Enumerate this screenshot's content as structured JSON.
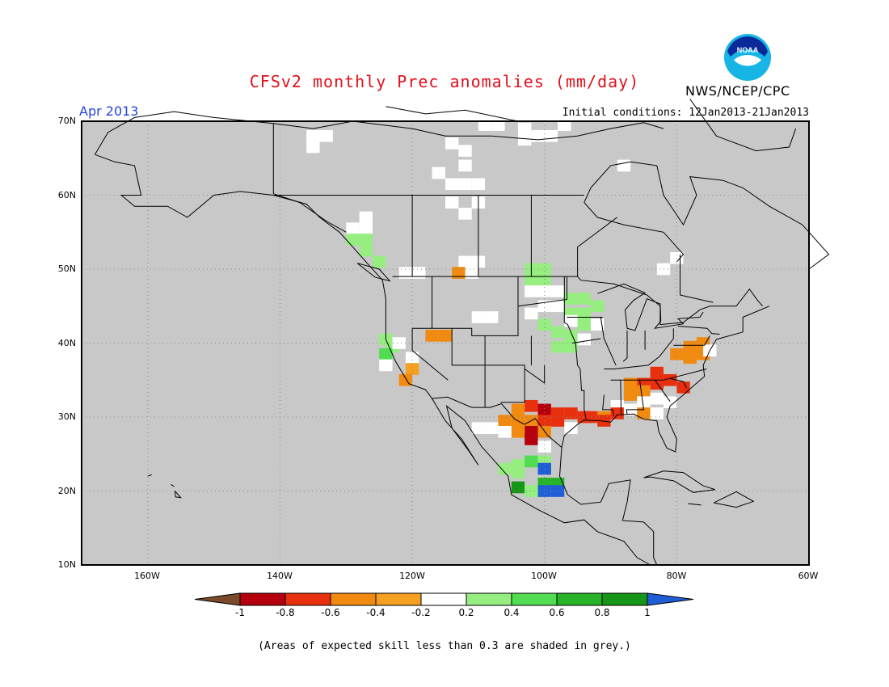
{
  "title": "CFSv2 monthly Prec anomalies (mm/day)",
  "agency": "NWS/NCEP/CPC",
  "logo_text": "NOAA",
  "target_month": "Apr 2013",
  "initial_conditions": "Initial conditions: 12Jan2013-21Jan2013",
  "lat_labels": [
    "70N",
    "60N",
    "50N",
    "40N",
    "30N",
    "20N",
    "10N"
  ],
  "lon_labels": [
    "160W",
    "140W",
    "120W",
    "100W",
    "80W",
    "60W"
  ],
  "colorbar": {
    "labels": [
      "-1",
      "-0.8",
      "-0.6",
      "-0.4",
      "-0.2",
      "0.2",
      "0.4",
      "0.6",
      "0.8",
      "1"
    ],
    "colors": [
      "#7a4a2a",
      "#b5000e",
      "#e8300f",
      "#f08a10",
      "#f5a020",
      "#ffffff",
      "#96ee80",
      "#52dc52",
      "#28b428",
      "#169616",
      "#1f5ed6"
    ]
  },
  "note": "(Areas of expected skill less than 0.3 are shaded in grey.)",
  "map_colors": {
    "background": "#c8c8c8",
    "coast": "#000000",
    "grid": "#808080"
  }
}
